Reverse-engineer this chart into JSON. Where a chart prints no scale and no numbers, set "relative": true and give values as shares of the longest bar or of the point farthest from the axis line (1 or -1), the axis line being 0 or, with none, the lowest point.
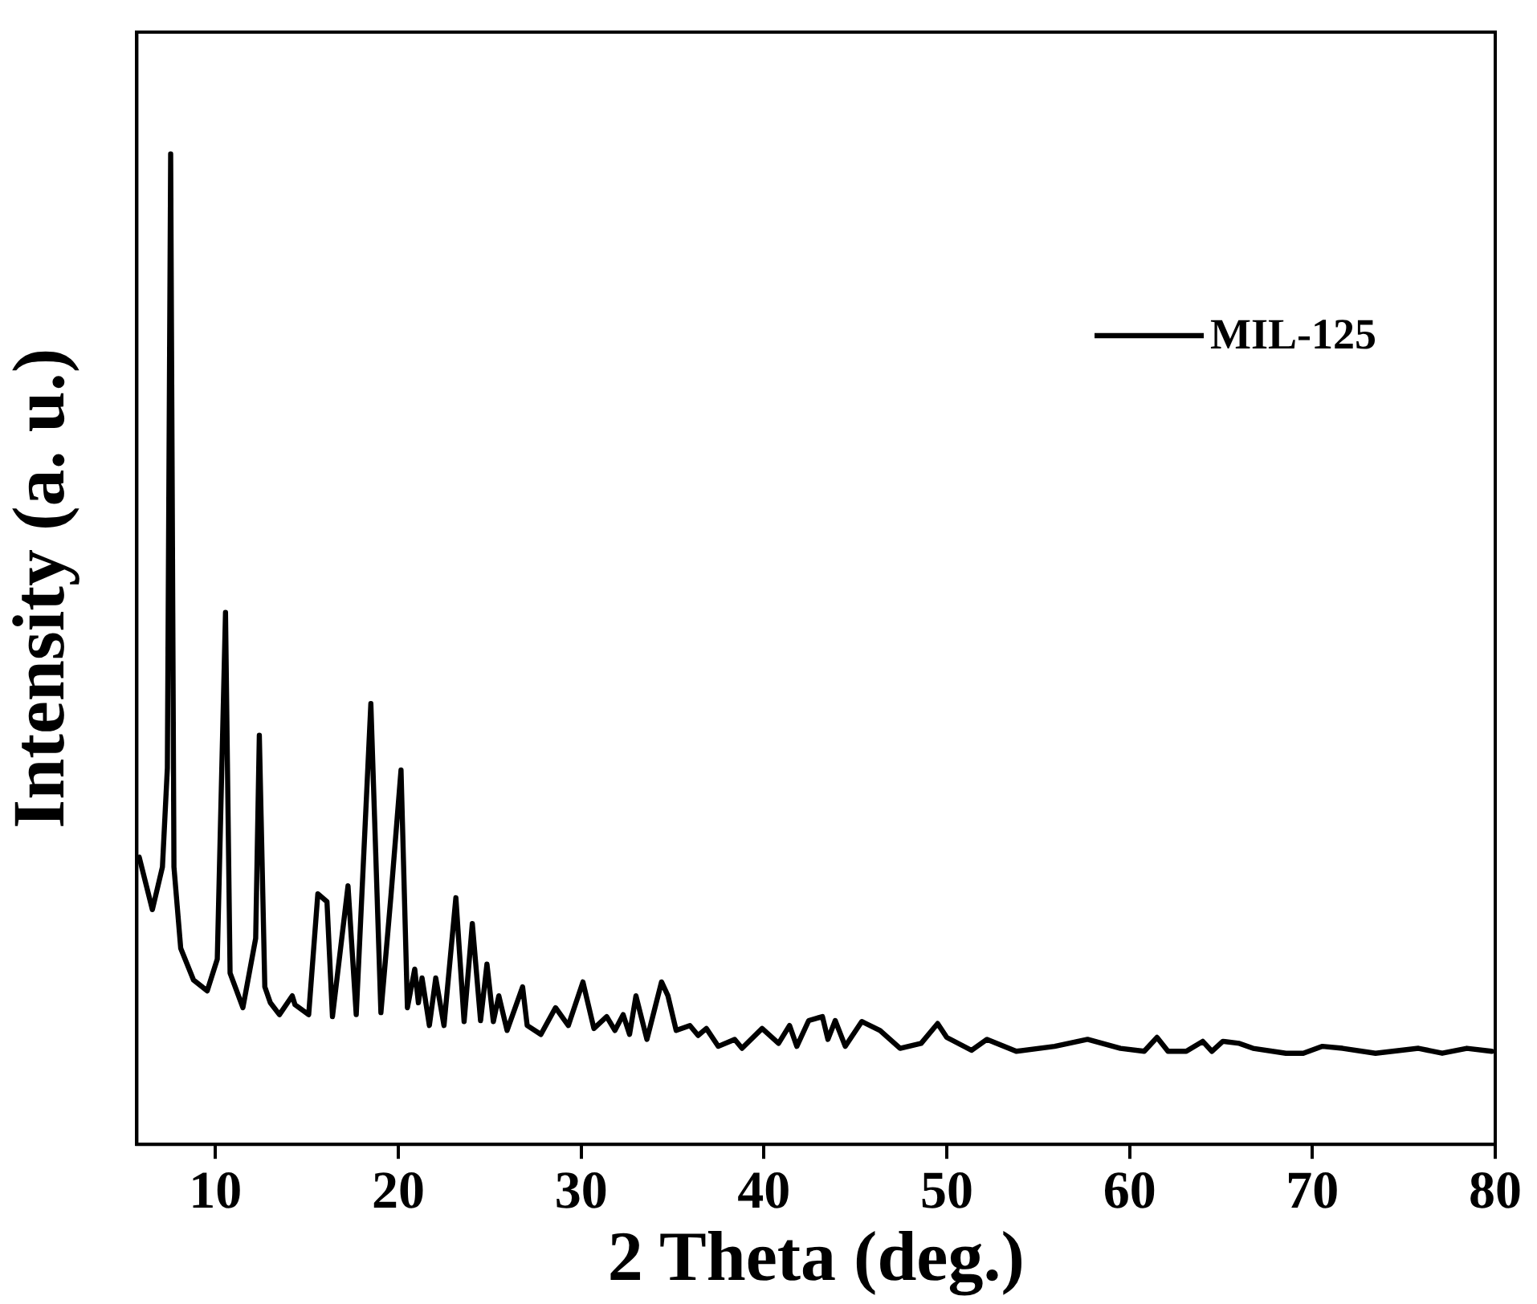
{
  "chart_data": {
    "type": "line",
    "xlabel": "2 Theta (deg.)",
    "ylabel": "Intensity (a. u.)",
    "relative": true,
    "xlim": [
      5.7,
      80
    ],
    "xticks": [
      10,
      20,
      30,
      40,
      50,
      60,
      70,
      80
    ],
    "grid": false,
    "legend": "top right",
    "marker": "none",
    "line_style": "solid",
    "series": [
      {
        "name": "MIL-125",
        "color": "#000000",
        "x": [
          5.83,
          6.55,
          7.1,
          7.37,
          7.55,
          7.73,
          8.1,
          8.8,
          9.55,
          10.1,
          10.55,
          10.8,
          11.5,
          12.2,
          12.4,
          12.7,
          13.0,
          13.5,
          14.2,
          14.35,
          15.1,
          15.6,
          16.1,
          16.4,
          17.25,
          17.7,
          18.5,
          19.05,
          19.6,
          20.15,
          20.5,
          20.9,
          21.1,
          21.3,
          21.7,
          22.05,
          22.5,
          23.15,
          23.6,
          24.05,
          24.5,
          24.85,
          25.2,
          25.5,
          25.95,
          26.8,
          27.05,
          27.8,
          28.6,
          29.3,
          30.1,
          30.7,
          31.4,
          31.85,
          32.3,
          32.65,
          33.0,
          33.6,
          34.4,
          34.75,
          35.2,
          35.95,
          36.4,
          36.85,
          37.5,
          38.4,
          38.8,
          39.9,
          40.8,
          41.4,
          41.8,
          42.45,
          43.2,
          43.5,
          43.9,
          44.45,
          45.35,
          46.35,
          47.45,
          48.6,
          49.5,
          50.0,
          51.35,
          52.2,
          53.8,
          55.9,
          57.7,
          59.5,
          60.8,
          61.5,
          62.1,
          63.1,
          64.0,
          64.5,
          65.1,
          66.0,
          66.75,
          68.55,
          69.5,
          70.55,
          71.65,
          73.45,
          75.8,
          77.1,
          78.45,
          79.8
        ],
        "values": [
          0.29,
          0.237,
          0.28,
          0.38,
          1.0,
          0.28,
          0.198,
          0.166,
          0.155,
          0.187,
          0.537,
          0.173,
          0.138,
          0.208,
          0.413,
          0.159,
          0.143,
          0.131,
          0.15,
          0.141,
          0.131,
          0.253,
          0.245,
          0.129,
          0.261,
          0.131,
          0.445,
          0.133,
          0.251,
          0.378,
          0.138,
          0.177,
          0.143,
          0.168,
          0.12,
          0.168,
          0.12,
          0.249,
          0.124,
          0.223,
          0.125,
          0.182,
          0.124,
          0.15,
          0.115,
          0.159,
          0.12,
          0.111,
          0.138,
          0.12,
          0.164,
          0.117,
          0.129,
          0.115,
          0.131,
          0.111,
          0.15,
          0.106,
          0.164,
          0.15,
          0.115,
          0.12,
          0.11,
          0.117,
          0.099,
          0.106,
          0.097,
          0.117,
          0.102,
          0.12,
          0.099,
          0.125,
          0.129,
          0.106,
          0.125,
          0.099,
          0.124,
          0.115,
          0.097,
          0.102,
          0.122,
          0.108,
          0.095,
          0.106,
          0.094,
          0.099,
          0.106,
          0.097,
          0.094,
          0.108,
          0.094,
          0.094,
          0.104,
          0.094,
          0.104,
          0.102,
          0.097,
          0.092,
          0.092,
          0.099,
          0.097,
          0.092,
          0.097,
          0.092,
          0.097,
          0.094
        ]
      }
    ]
  }
}
